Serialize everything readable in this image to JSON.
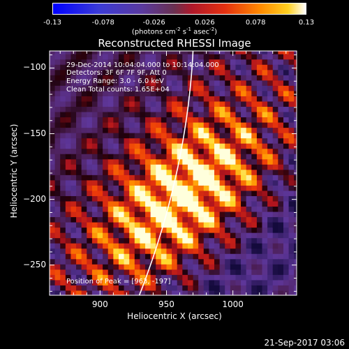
{
  "colorbar": {
    "min": -0.13,
    "max": 0.13,
    "ticks": [
      "-0.13",
      "-0.078",
      "-0.026",
      "0.026",
      "0.078",
      "0.13"
    ],
    "unit_prefix": "(photons cm",
    "unit_exp1": "-2",
    "unit_mid": " s",
    "unit_exp2": "-1",
    "unit_mid2": " asec",
    "unit_exp3": "-2",
    "unit_suffix": ")"
  },
  "chart_data": {
    "type": "heatmap",
    "title": "Reconstructed RHESSI Image",
    "xlabel": "Heliocentric X (arcsec)",
    "ylabel": "Heliocentric Y (arcsec)",
    "xlim": [
      862,
      1048
    ],
    "ylim": [
      -273,
      -87
    ],
    "xticks": [
      900,
      950,
      1000
    ],
    "yticks": [
      -100,
      -150,
      -200,
      -250
    ],
    "peak": {
      "x": 963,
      "y": -197
    },
    "colormap": "heat",
    "annotations": [
      "29-Dec-2014 10:04:04.000 to 10:14:04.000",
      "Detectors: 3F 6F 7F 9F, Att 0",
      "Energy Range: 3.0 - 6.0 keV",
      "Clean     Total counts: 1.65E+04"
    ],
    "peak_label": "Position of Peak = [963, -197]",
    "limb_line": true
  },
  "footer": {
    "timestamp": "21-Sep-2017 03:06"
  }
}
